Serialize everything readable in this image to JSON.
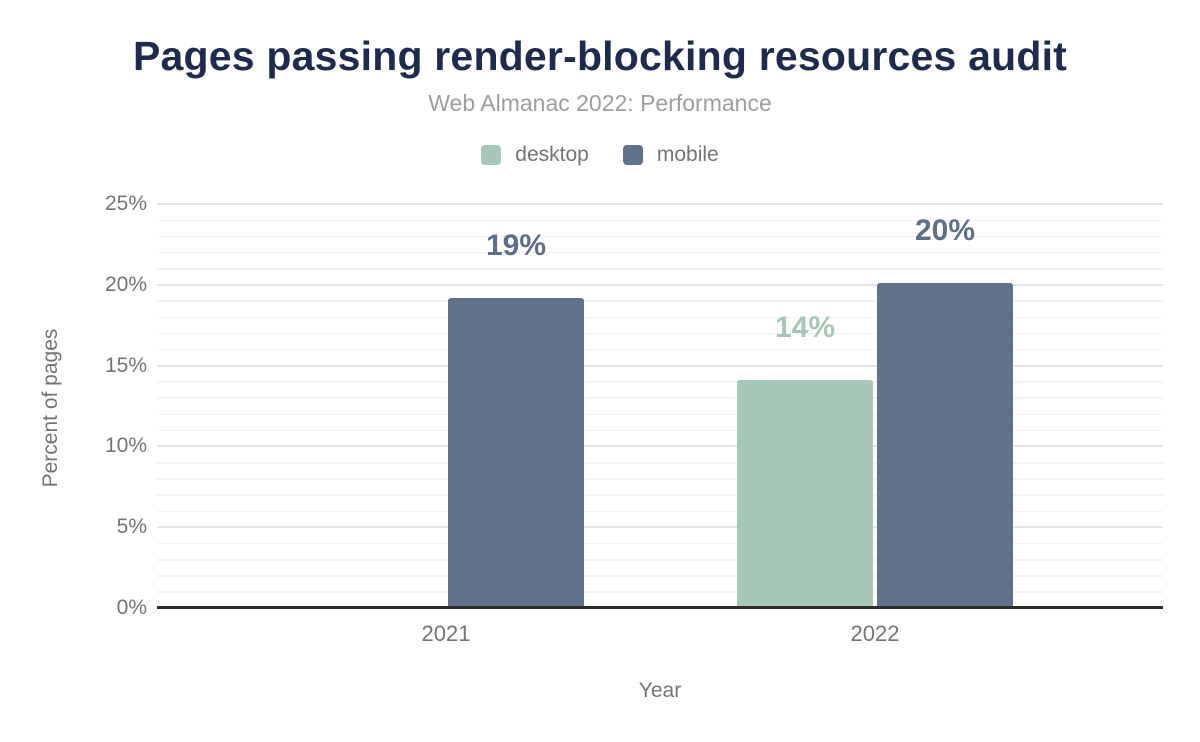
{
  "title": "Pages passing render-blocking resources audit",
  "subtitle": "Web Almanac 2022: Performance",
  "legend": {
    "items": [
      {
        "label": "desktop",
        "color": "#a7c8b8"
      },
      {
        "label": "mobile",
        "color": "#60718a"
      }
    ]
  },
  "chart_data": {
    "type": "bar",
    "title": "Pages passing render-blocking resources audit",
    "subtitle": "Web Almanac 2022: Performance",
    "categories": [
      "2021",
      "2022"
    ],
    "series": [
      {
        "name": "desktop",
        "color": "#a7c8b8",
        "label_color": "#a5c7b4",
        "values": [
          null,
          14.1
        ],
        "data_labels": [
          "",
          "14%"
        ]
      },
      {
        "name": "mobile",
        "color": "#60718a",
        "label_color": "#5e7089",
        "values": [
          19.2,
          20.1
        ],
        "data_labels": [
          "19%",
          "20%"
        ]
      }
    ],
    "xlabel": "Year",
    "ylabel": "Percent of pages",
    "ylim": [
      0,
      25
    ],
    "ytick_labels": [
      "0%",
      "5%",
      "10%",
      "15%",
      "20%",
      "25%"
    ],
    "ytick_values": [
      0,
      5,
      10,
      15,
      20,
      25
    ],
    "grid": "horizontal, minor every 1%, major every 5%",
    "legend_position": "top center",
    "title_color": "#1e2b4c",
    "subtitle_color": "#9e9e9e",
    "axis_text_color": "#757575",
    "axis_line_color": "#2d2d2d"
  }
}
